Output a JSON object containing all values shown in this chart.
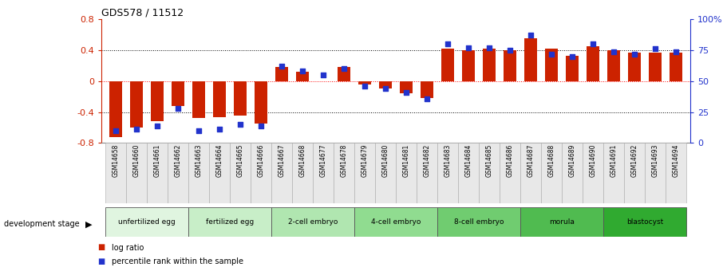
{
  "title": "GDS578 / 11512",
  "samples": [
    "GSM14658",
    "GSM14660",
    "GSM14661",
    "GSM14662",
    "GSM14663",
    "GSM14664",
    "GSM14665",
    "GSM14666",
    "GSM14667",
    "GSM14668",
    "GSM14677",
    "GSM14678",
    "GSM14679",
    "GSM14680",
    "GSM14681",
    "GSM14682",
    "GSM14683",
    "GSM14684",
    "GSM14685",
    "GSM14686",
    "GSM14687",
    "GSM14688",
    "GSM14689",
    "GSM14690",
    "GSM14691",
    "GSM14692",
    "GSM14693",
    "GSM14694"
  ],
  "log_ratio": [
    -0.72,
    -0.6,
    -0.52,
    -0.32,
    -0.48,
    -0.47,
    -0.45,
    -0.55,
    0.18,
    0.12,
    0.0,
    0.18,
    -0.04,
    -0.1,
    -0.16,
    -0.22,
    0.42,
    0.4,
    0.42,
    0.4,
    0.55,
    0.42,
    0.33,
    0.45,
    0.4,
    0.37,
    0.37,
    0.37
  ],
  "percentile": [
    10,
    11,
    14,
    28,
    10,
    11,
    15,
    14,
    62,
    58,
    55,
    60,
    46,
    44,
    41,
    36,
    80,
    77,
    77,
    75,
    87,
    72,
    70,
    80,
    74,
    72,
    76,
    74
  ],
  "bar_color": "#cc2200",
  "dot_color": "#2233cc",
  "stages": [
    {
      "label": "unfertilized egg",
      "start": 0,
      "end": 4
    },
    {
      "label": "fertilized egg",
      "start": 4,
      "end": 8
    },
    {
      "label": "2-cell embryo",
      "start": 8,
      "end": 12
    },
    {
      "label": "4-cell embryo",
      "start": 12,
      "end": 16
    },
    {
      "label": "8-cell embryo",
      "start": 16,
      "end": 20
    },
    {
      "label": "morula",
      "start": 20,
      "end": 24
    },
    {
      "label": "blastocyst",
      "start": 24,
      "end": 28
    }
  ],
  "stage_colors": [
    "#e0f5e0",
    "#c8eec8",
    "#b0e6b0",
    "#90dc90",
    "#70cc70",
    "#50bb50",
    "#30aa30"
  ],
  "ylim_left": [
    -0.8,
    0.8
  ],
  "ylim_right": [
    0,
    100
  ],
  "yticks_left": [
    -0.8,
    -0.4,
    0.0,
    0.4,
    0.8
  ],
  "yticks_right": [
    0,
    25,
    50,
    75,
    100
  ],
  "ytick_labels_right": [
    "0",
    "25",
    "50",
    "75",
    "100%"
  ],
  "hlines": [
    0.4,
    0.0,
    -0.4
  ],
  "bar_width": 0.6
}
